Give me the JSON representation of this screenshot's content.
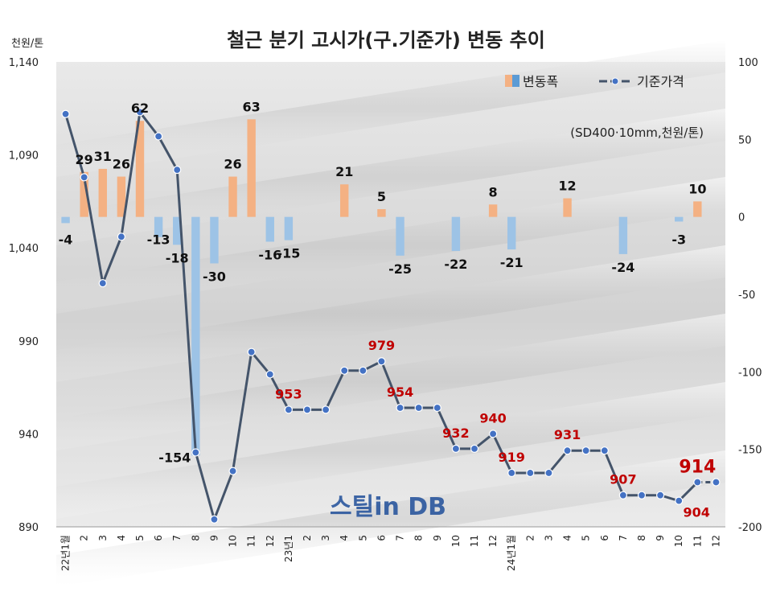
{
  "chart_data": {
    "type": "bar",
    "title": "철근 분기 고시가(구.기준가) 변동 추이",
    "unit_note": "(SD400·10mm,천원/톤)",
    "left_axis_unit": "천원/톤",
    "watermark": "스틸in DB",
    "y_left": {
      "min": 890,
      "max": 1140,
      "ticks": [
        "890",
        "940",
        "990",
        "1,040",
        "1,090",
        "1,140"
      ]
    },
    "y_right": {
      "min": -200,
      "max": 100,
      "ticks": [
        "-200",
        "-150",
        "-100",
        "-50",
        "0",
        "50",
        "100"
      ]
    },
    "x_labels": [
      "22년1월",
      "2",
      "3",
      "4",
      "5",
      "6",
      "7",
      "8",
      "9",
      "10",
      "11",
      "12",
      "23년1",
      "2",
      "3",
      "4",
      "5",
      "6",
      "7",
      "8",
      "9",
      "10",
      "11",
      "12",
      "24년1월",
      "2",
      "3",
      "4",
      "5",
      "6",
      "7",
      "8",
      "9",
      "10",
      "11",
      "12"
    ],
    "series": [
      {
        "name": "변동폭",
        "axis": "right",
        "values": [
          -4,
          29,
          31,
          26,
          62,
          -13,
          -18,
          -154,
          -30,
          26,
          63,
          -16,
          -15,
          0,
          0,
          21,
          0,
          5,
          -25,
          0,
          0,
          -22,
          0,
          8,
          -21,
          0,
          0,
          12,
          0,
          0,
          -24,
          0,
          0,
          -3,
          10,
          0
        ],
        "labels": [
          "-4",
          "29",
          "31",
          "26",
          "62",
          "-13",
          "-18",
          "-154",
          "-30",
          "26",
          "63",
          "-16",
          "-15",
          "",
          "",
          "21",
          "",
          "5",
          "-25",
          "",
          "",
          "-22",
          "",
          "8",
          "-21",
          "",
          "",
          "12",
          "",
          "",
          "-24",
          "",
          "",
          "-3",
          "10",
          ""
        ]
      },
      {
        "name": "기준가격",
        "axis": "left",
        "values": [
          1112,
          1078,
          1021,
          1046,
          1113,
          1100,
          1082,
          930,
          894,
          920,
          984,
          972,
          953,
          953,
          953,
          974,
          974,
          979,
          954,
          954,
          954,
          932,
          932,
          940,
          919,
          919,
          919,
          931,
          931,
          931,
          907,
          907,
          907,
          904,
          914,
          914
        ],
        "labels": [
          "",
          "",
          "",
          "",
          "",
          "",
          "",
          "",
          "",
          "",
          "",
          "",
          "953",
          "",
          "",
          "",
          "",
          "979",
          "954",
          "",
          "",
          "932",
          "",
          "940",
          "919",
          "",
          "",
          "931",
          "",
          "",
          "907",
          "",
          "",
          "904",
          "914",
          ""
        ]
      }
    ],
    "colors": {
      "positive_bar": "#F4B183",
      "negative_bar": "#9DC3E6",
      "line": "#44546A",
      "marker": "#4472C4",
      "highlight_label": "#C00000",
      "legend_bar_neg": "#5B9BD5"
    },
    "legend": {
      "position": "top-right",
      "bar": "변동폭",
      "line": "기준가격"
    }
  }
}
